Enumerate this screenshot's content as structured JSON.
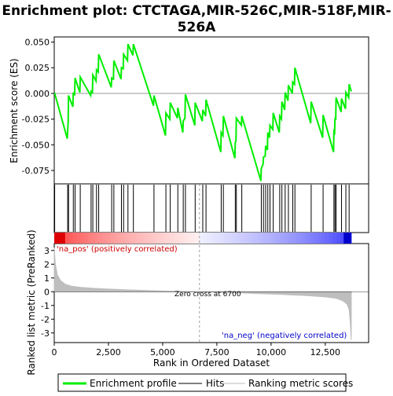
{
  "chart_data": {
    "type": "line",
    "title": "Enrichment plot: CTCTAGA,MIR-526C,MIR-518F,MIR-526A",
    "title_lines": [
      "Enrichment plot: CTCTAGA,MIR-526C,MIR-518F,MIR-",
      "526A"
    ],
    "xlabel": "Rank in Ordered Dataset",
    "ylabel_top": "Enrichment score (ES)",
    "ylabel_bottom": "Ranked list metric (PreRanked)",
    "xlim": [
      0,
      14500
    ],
    "x_ticks": [
      0,
      2500,
      5000,
      7500,
      10000,
      12500
    ],
    "x_tick_labels": [
      "0",
      "2,500",
      "5,000",
      "7,500",
      "10,000",
      "12,500"
    ],
    "es_ylim": [
      -0.088,
      0.055
    ],
    "es_y_ticks": [
      -0.075,
      -0.05,
      -0.025,
      0.0,
      0.025,
      0.05
    ],
    "es_y_tick_labels": [
      "-0.075",
      "-0.050",
      "-0.025",
      "0.000",
      "0.025",
      "0.050"
    ],
    "metric_ylim": [
      -3.7,
      3.5
    ],
    "metric_y_ticks": [
      -3,
      -2,
      -1,
      0,
      1,
      2,
      3
    ],
    "metric_y_tick_labels": [
      "-3",
      "-2",
      "-1",
      "0",
      "1",
      "2",
      "3"
    ],
    "grid": false,
    "legend_position": "bottom",
    "zero_cross": 6700,
    "zero_cross_label": "Zero cross at 6700",
    "pos_label": "'na_pos' (positively correlated)",
    "neg_label": "'na_neg' (negatively correlated)",
    "n_genes": 13700,
    "hits": [
      20,
      620,
      660,
      880,
      960,
      1200,
      1700,
      1780,
      1950,
      2050,
      2650,
      2750,
      3100,
      3200,
      3400,
      3650,
      4600,
      5150,
      5350,
      5700,
      5950,
      6050,
      6500,
      6850,
      7000,
      7700,
      7800,
      8350,
      8400,
      8650,
      9550,
      9650,
      9750,
      9850,
      9950,
      10100,
      10400,
      10500,
      10650,
      10800,
      11000,
      11100,
      11850,
      12400,
      12900,
      12950,
      13000,
      13250,
      13450,
      13600
    ],
    "series": [
      {
        "name": "Enrichment profile",
        "color": "#00ee00",
        "x": [
          0,
          20,
          600,
          620,
          640,
          660,
          860,
          880,
          940,
          960,
          1180,
          1200,
          1680,
          1700,
          1760,
          1780,
          1930,
          1950,
          2030,
          2050,
          2630,
          2650,
          2730,
          2750,
          3080,
          3100,
          3180,
          3200,
          3380,
          3400,
          3630,
          3650,
          4580,
          4600,
          5130,
          5150,
          5330,
          5350,
          5680,
          5700,
          5930,
          5950,
          6030,
          6050,
          6480,
          6500,
          6830,
          6850,
          6980,
          7000,
          7680,
          7700,
          7780,
          7800,
          8330,
          8350,
          8380,
          8400,
          8630,
          8650,
          9530,
          9550,
          9630,
          9650,
          9730,
          9750,
          9830,
          9850,
          9930,
          9950,
          10080,
          10100,
          10380,
          10400,
          10480,
          10500,
          10630,
          10650,
          10780,
          10800,
          10980,
          11000,
          11080,
          11100,
          11830,
          11850,
          12380,
          12400,
          12880,
          12900,
          12930,
          12950,
          12980,
          13000,
          13230,
          13250,
          13430,
          13450,
          13580,
          13600,
          13700
        ],
        "y": [
          0.0,
          0.0,
          -0.044,
          -0.036,
          -0.028,
          -0.002,
          -0.013,
          0.001,
          -0.002,
          0.015,
          0.001,
          0.016,
          -0.002,
          0.002,
          0.001,
          0.018,
          0.012,
          0.023,
          0.021,
          0.038,
          0.006,
          0.015,
          0.014,
          0.032,
          0.014,
          0.025,
          0.024,
          0.038,
          0.032,
          0.048,
          0.037,
          0.048,
          -0.012,
          -0.002,
          -0.041,
          -0.019,
          -0.025,
          -0.009,
          -0.024,
          -0.014,
          -0.038,
          -0.027,
          -0.024,
          -0.001,
          -0.031,
          -0.009,
          -0.027,
          -0.016,
          -0.022,
          -0.006,
          -0.057,
          -0.038,
          -0.041,
          -0.022,
          -0.063,
          -0.048,
          -0.046,
          -0.024,
          -0.031,
          -0.022,
          -0.085,
          -0.073,
          -0.069,
          -0.062,
          -0.061,
          -0.051,
          -0.055,
          -0.038,
          -0.043,
          -0.031,
          -0.035,
          -0.019,
          -0.038,
          -0.022,
          -0.025,
          -0.008,
          -0.016,
          0.001,
          -0.007,
          0.008,
          0.0,
          0.011,
          0.009,
          0.025,
          -0.029,
          -0.008,
          -0.043,
          -0.021,
          -0.057,
          -0.037,
          -0.038,
          -0.024,
          -0.026,
          -0.004,
          -0.018,
          -0.005,
          -0.015,
          0.001,
          -0.004,
          0.009,
          0.002
        ]
      },
      {
        "name": "Hits",
        "color": "#000000"
      },
      {
        "name": "Ranking metric scores",
        "color": "#bebebe",
        "x": [
          0,
          50,
          150,
          300,
          500,
          800,
          1200,
          1800,
          2500,
          3500,
          4500,
          5500,
          6700,
          7500,
          8500,
          9500,
          10500,
          11500,
          12000,
          12500,
          13000,
          13300,
          13500,
          13600,
          13650,
          13700
        ],
        "y": [
          3.2,
          2.0,
          1.2,
          0.8,
          0.55,
          0.4,
          0.32,
          0.25,
          0.19,
          0.13,
          0.08,
          0.04,
          0.0,
          -0.04,
          -0.09,
          -0.14,
          -0.2,
          -0.27,
          -0.32,
          -0.38,
          -0.48,
          -0.65,
          -0.9,
          -1.3,
          -2.2,
          -3.5
        ]
      }
    ]
  }
}
